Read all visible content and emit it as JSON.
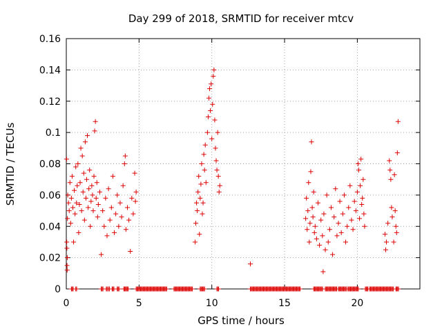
{
  "chart_data": {
    "type": "scatter",
    "title": "Day 299 of 2018, SRMTID for receiver mtcv",
    "xlabel": "GPS time / hours",
    "ylabel": "SRMTID / TECUs",
    "xlim": [
      0,
      24.3
    ],
    "ylim": [
      0,
      0.16
    ],
    "xticks": [
      0,
      5,
      10,
      15,
      20
    ],
    "xtick_labels": [
      "0",
      "5",
      "10",
      "15",
      "20"
    ],
    "yticks": [
      0,
      0.02,
      0.04,
      0.06,
      0.08,
      0.1,
      0.12,
      0.14,
      0.16
    ],
    "ytick_labels": [
      "0",
      "0.02",
      "0.04",
      "0.06",
      "0.08",
      "0.1",
      "0.12",
      "0.14",
      "0.16"
    ],
    "grid": true,
    "marker": "+",
    "color": "#dd0000",
    "series": [
      {
        "name": "SRMTID",
        "points": [
          [
            0.02,
            0.083
          ],
          [
            0.03,
            0.03
          ],
          [
            0.04,
            0.026
          ],
          [
            0.05,
            0.015
          ],
          [
            0.06,
            0.012
          ],
          [
            0.07,
            0.02
          ],
          [
            0.08,
            0.045
          ],
          [
            0.1,
            0.06
          ],
          [
            0.15,
            0.055
          ],
          [
            0.2,
            0.05
          ],
          [
            0.25,
            0.068
          ],
          [
            0.3,
            0.042
          ],
          [
            0.35,
            0.058
          ],
          [
            0.4,
            0.072
          ],
          [
            0.45,
            0.052
          ],
          [
            0.5,
            0.03
          ],
          [
            0.55,
            0.063
          ],
          [
            0.6,
            0.048
          ],
          [
            0.65,
            0.078
          ],
          [
            0.7,
            0.055
          ],
          [
            0.75,
            0.066
          ],
          [
            0.8,
            0.08
          ],
          [
            0.85,
            0.036
          ],
          [
            0.9,
            0.054
          ],
          [
            0.95,
            0.068
          ],
          [
            1.0,
            0.09
          ],
          [
            1.05,
            0.05
          ],
          [
            1.1,
            0.085
          ],
          [
            1.15,
            0.062
          ],
          [
            1.2,
            0.074
          ],
          [
            1.25,
            0.044
          ],
          [
            1.3,
            0.094
          ],
          [
            1.35,
            0.058
          ],
          [
            1.4,
            0.07
          ],
          [
            1.45,
            0.098
          ],
          [
            1.5,
            0.052
          ],
          [
            1.55,
            0.064
          ],
          [
            1.6,
            0.076
          ],
          [
            1.65,
            0.04
          ],
          [
            1.7,
            0.056
          ],
          [
            1.75,
            0.066
          ],
          [
            1.8,
            0.06
          ],
          [
            1.85,
            0.05
          ],
          [
            1.9,
            0.072
          ],
          [
            1.95,
            0.101
          ],
          [
            2.0,
            0.107
          ],
          [
            2.05,
            0.058
          ],
          [
            2.1,
            0.068
          ],
          [
            2.15,
            0.046
          ],
          [
            2.2,
            0.054
          ],
          [
            2.3,
            0.062
          ],
          [
            2.4,
            0.022
          ],
          [
            2.5,
            0.05
          ],
          [
            2.6,
            0.04
          ],
          [
            2.7,
            0.058
          ],
          [
            2.8,
            0.034
          ],
          [
            2.9,
            0.064
          ],
          [
            3.0,
            0.044
          ],
          [
            3.1,
            0.052
          ],
          [
            3.2,
            0.072
          ],
          [
            3.3,
            0.036
          ],
          [
            3.4,
            0.048
          ],
          [
            3.5,
            0.06
          ],
          [
            3.6,
            0.04
          ],
          [
            3.7,
            0.055
          ],
          [
            3.8,
            0.046
          ],
          [
            3.9,
            0.066
          ],
          [
            4.0,
            0.08
          ],
          [
            4.05,
            0.085
          ],
          [
            4.1,
            0.038
          ],
          [
            4.2,
            0.052
          ],
          [
            4.3,
            0.044
          ],
          [
            4.4,
            0.024
          ],
          [
            4.5,
            0.058
          ],
          [
            4.6,
            0.048
          ],
          [
            4.7,
            0.074
          ],
          [
            4.75,
            0.056
          ],
          [
            4.8,
            0.062
          ],
          [
            8.85,
            0.03
          ],
          [
            8.9,
            0.042
          ],
          [
            8.95,
            0.055
          ],
          [
            9.0,
            0.05
          ],
          [
            9.05,
            0.062
          ],
          [
            9.1,
            0.072
          ],
          [
            9.15,
            0.035
          ],
          [
            9.2,
            0.058
          ],
          [
            9.25,
            0.067
          ],
          [
            9.3,
            0.08
          ],
          [
            9.35,
            0.048
          ],
          [
            9.4,
            0.055
          ],
          [
            9.45,
            0.086
          ],
          [
            9.5,
            0.076
          ],
          [
            9.55,
            0.092
          ],
          [
            9.6,
            0.068
          ],
          [
            9.7,
            0.1
          ],
          [
            9.75,
            0.11
          ],
          [
            9.8,
            0.122
          ],
          [
            9.85,
            0.128
          ],
          [
            9.9,
            0.114
          ],
          [
            9.95,
            0.131
          ],
          [
            10.0,
            0.096
          ],
          [
            10.05,
            0.118
          ],
          [
            10.1,
            0.136
          ],
          [
            10.15,
            0.14
          ],
          [
            10.2,
            0.108
          ],
          [
            10.25,
            0.09
          ],
          [
            10.3,
            0.082
          ],
          [
            10.35,
            0.076
          ],
          [
            10.4,
            0.1
          ],
          [
            10.45,
            0.072
          ],
          [
            10.5,
            0.062
          ],
          [
            10.55,
            0.066
          ],
          [
            12.65,
            0.016
          ],
          [
            16.45,
            0.045
          ],
          [
            16.5,
            0.058
          ],
          [
            16.55,
            0.038
          ],
          [
            16.6,
            0.05
          ],
          [
            16.65,
            0.068
          ],
          [
            16.7,
            0.03
          ],
          [
            16.75,
            0.042
          ],
          [
            16.8,
            0.075
          ],
          [
            16.85,
            0.094
          ],
          [
            16.9,
            0.052
          ],
          [
            16.95,
            0.046
          ],
          [
            17.0,
            0.062
          ],
          [
            17.05,
            0.036
          ],
          [
            17.1,
            0.04
          ],
          [
            17.2,
            0.032
          ],
          [
            17.3,
            0.055
          ],
          [
            17.4,
            0.028
          ],
          [
            17.5,
            0.044
          ],
          [
            17.6,
            0.034
          ],
          [
            17.65,
            0.011
          ],
          [
            17.7,
            0.048
          ],
          [
            17.8,
            0.025
          ],
          [
            17.9,
            0.06
          ],
          [
            18.0,
            0.03
          ],
          [
            18.1,
            0.038
          ],
          [
            18.2,
            0.052
          ],
          [
            18.3,
            0.022
          ],
          [
            18.4,
            0.046
          ],
          [
            18.5,
            0.064
          ],
          [
            18.6,
            0.034
          ],
          [
            18.7,
            0.042
          ],
          [
            18.8,
            0.056
          ],
          [
            18.9,
            0.036
          ],
          [
            19.0,
            0.048
          ],
          [
            19.1,
            0.06
          ],
          [
            19.2,
            0.03
          ],
          [
            19.3,
            0.04
          ],
          [
            19.4,
            0.052
          ],
          [
            19.5,
            0.066
          ],
          [
            19.6,
            0.044
          ],
          [
            19.7,
            0.038
          ],
          [
            19.8,
            0.056
          ],
          [
            19.9,
            0.05
          ],
          [
            20.0,
            0.062
          ],
          [
            20.05,
            0.08
          ],
          [
            20.1,
            0.076
          ],
          [
            20.15,
            0.045
          ],
          [
            20.2,
            0.066
          ],
          [
            20.25,
            0.083
          ],
          [
            20.3,
            0.054
          ],
          [
            20.35,
            0.058
          ],
          [
            20.4,
            0.07
          ],
          [
            20.45,
            0.048
          ],
          [
            20.5,
            0.04
          ],
          [
            21.9,
            0.035
          ],
          [
            21.95,
            0.025
          ],
          [
            22.0,
            0.03
          ],
          [
            22.1,
            0.042
          ],
          [
            22.2,
            0.082
          ],
          [
            22.25,
            0.076
          ],
          [
            22.3,
            0.07
          ],
          [
            22.35,
            0.052
          ],
          [
            22.4,
            0.046
          ],
          [
            22.5,
            0.03
          ],
          [
            22.55,
            0.073
          ],
          [
            22.6,
            0.05
          ],
          [
            22.65,
            0.04
          ],
          [
            22.7,
            0.036
          ],
          [
            22.75,
            0.087
          ],
          [
            22.8,
            0.107
          ]
        ],
        "zero_ranges": [
          [
            0.35,
            0.5
          ],
          [
            0.65,
            0.75
          ],
          [
            2.4,
            2.55
          ],
          [
            2.75,
            2.85
          ],
          [
            2.9,
            3.0
          ],
          [
            3.15,
            3.3
          ],
          [
            3.5,
            3.65
          ],
          [
            3.95,
            4.3
          ],
          [
            4.8,
            6.9
          ],
          [
            7.4,
            8.7
          ],
          [
            9.2,
            9.5
          ],
          [
            10.35,
            10.5
          ],
          [
            12.65,
            16.1
          ],
          [
            17.0,
            17.5
          ],
          [
            17.55,
            17.65
          ],
          [
            17.8,
            18.6
          ],
          [
            18.7,
            19.25
          ],
          [
            19.35,
            20.1
          ],
          [
            20.55,
            20.75
          ],
          [
            20.85,
            22.5
          ],
          [
            22.65,
            22.85
          ]
        ],
        "zero_step": 0.06
      }
    ]
  }
}
